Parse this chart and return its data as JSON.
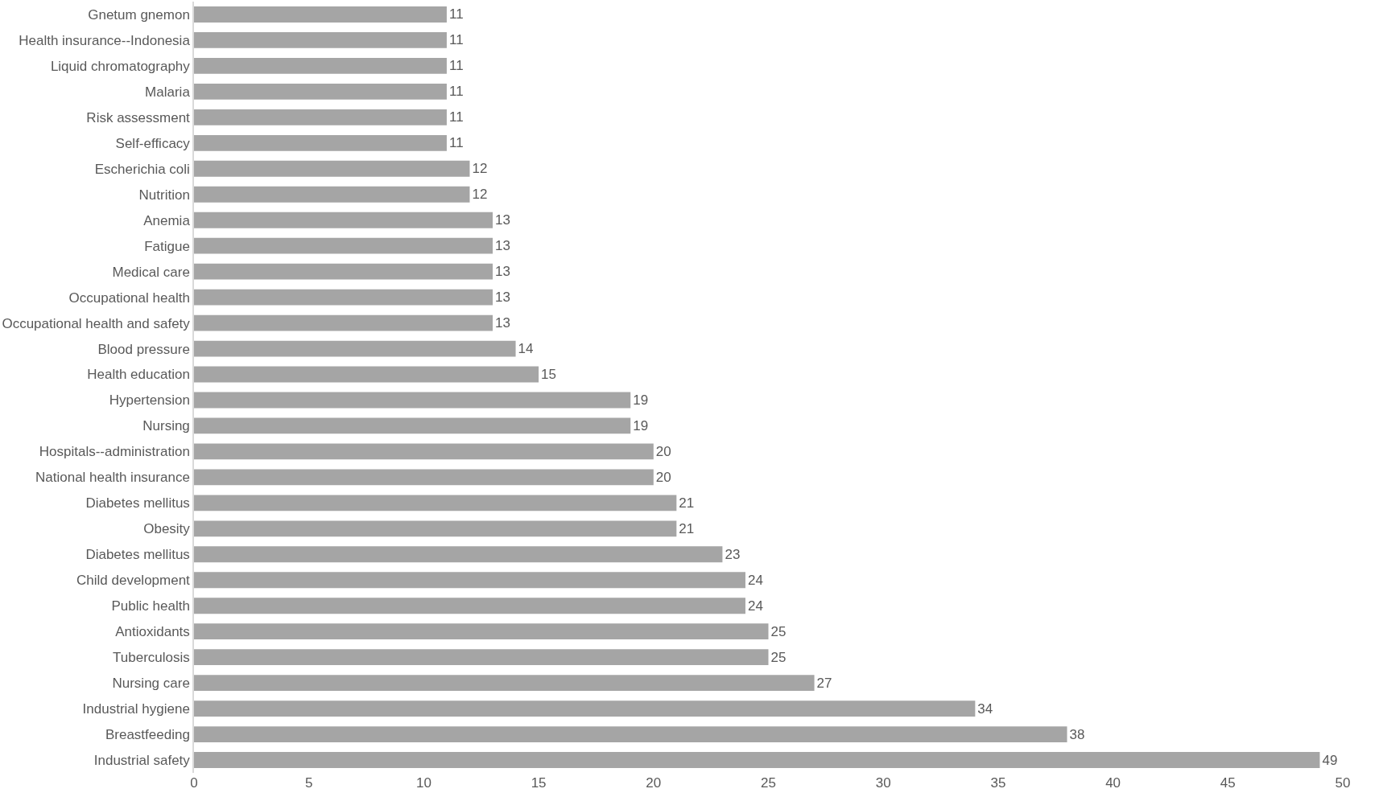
{
  "chart_data": {
    "type": "bar",
    "orientation": "horizontal",
    "categories": [
      "Gnetum gnemon",
      "Health insurance--Indonesia",
      "Liquid chromatography",
      "Malaria",
      "Risk assessment",
      "Self-efficacy",
      "Escherichia coli",
      "Nutrition",
      "Anemia",
      "Fatigue",
      "Medical care",
      "Occupational health",
      "Occupational health and safety",
      "Blood pressure",
      "Health education",
      "Hypertension",
      "Nursing",
      "Hospitals--administration",
      "National health insurance",
      "Diabetes mellitus",
      "Obesity",
      "Diabetes mellitus",
      "Child development",
      "Public health",
      "Antioxidants",
      "Tuberculosis",
      "Nursing care",
      "Industrial hygiene",
      "Breastfeeding",
      "Industrial safety"
    ],
    "values": [
      11,
      11,
      11,
      11,
      11,
      11,
      12,
      12,
      13,
      13,
      13,
      13,
      13,
      14,
      15,
      19,
      19,
      20,
      20,
      21,
      21,
      23,
      24,
      24,
      25,
      25,
      27,
      34,
      38,
      49
    ],
    "color": "#a5a5a5",
    "xlim": [
      0,
      50
    ],
    "xticks": [
      0,
      5,
      10,
      15,
      20,
      25,
      30,
      35,
      40,
      45,
      50
    ],
    "grid": false,
    "legend": false,
    "data_labels": true
  }
}
